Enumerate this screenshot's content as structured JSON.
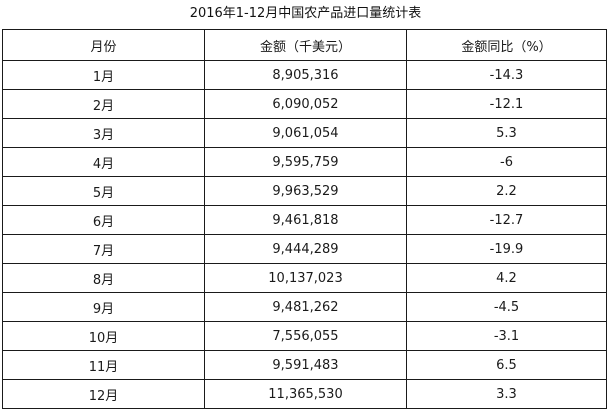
{
  "title": "2016年1-12月中国农产品进口量统计表",
  "chart_data": {
    "type": "table",
    "title": "2016年1-12月中国农产品进口量统计表",
    "columns": [
      "月份",
      "金额（千美元）",
      "金额同比（%）"
    ],
    "rows": [
      [
        "1月",
        "8,905,316",
        "-14.3"
      ],
      [
        "2月",
        "6,090,052",
        "-12.1"
      ],
      [
        "3月",
        "9,061,054",
        "5.3"
      ],
      [
        "4月",
        "9,595,759",
        "-6"
      ],
      [
        "5月",
        "9,963,529",
        "2.2"
      ],
      [
        "6月",
        "9,461,818",
        "-12.7"
      ],
      [
        "7月",
        "9,444,289",
        "-19.9"
      ],
      [
        "8月",
        "10,137,023",
        "4.2"
      ],
      [
        "9月",
        "9,481,262",
        "-4.5"
      ],
      [
        "10月",
        "7,556,055",
        "-3.1"
      ],
      [
        "11月",
        "9,591,483",
        "6.5"
      ],
      [
        "12月",
        "11,365,530",
        "3.3"
      ]
    ]
  },
  "colors": {
    "border": "#1a1a1a",
    "text": "#1a1a1a",
    "background": "#ffffff"
  }
}
